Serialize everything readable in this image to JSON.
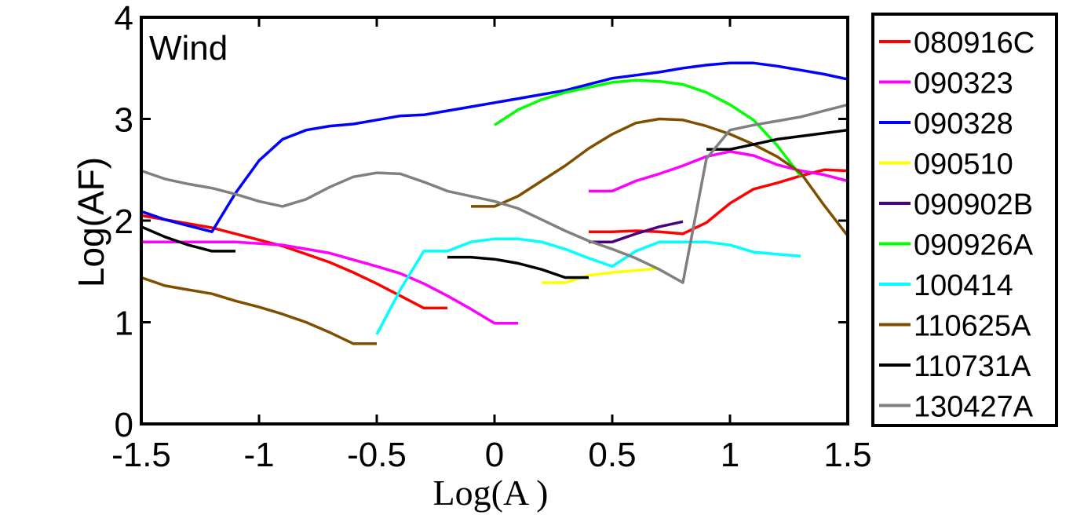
{
  "chart_data": {
    "type": "line",
    "panel_label": "Wind",
    "xlabel": "Log(A  )",
    "ylabel": "Log(AF)",
    "xlim": [
      -1.5,
      1.5
    ],
    "ylim": [
      0,
      4
    ],
    "xticks": [
      -1.5,
      -1,
      -0.5,
      0,
      0.5,
      1,
      1.5
    ],
    "xtick_labels": [
      "-1.5",
      "-1",
      "-0.5",
      "0",
      "0.5",
      "1",
      "1.5"
    ],
    "yticks": [
      0,
      1,
      2,
      3,
      4
    ],
    "ytick_labels": [
      "0",
      "1",
      "2",
      "3",
      "4"
    ],
    "grid": false,
    "legend_position": "outside-right",
    "series": [
      {
        "name": "080916C",
        "color": "#ff0000",
        "points": [
          [
            -1.5,
            2.05
          ],
          [
            -1.3,
            1.97
          ],
          [
            -1.2,
            1.93
          ],
          [
            -1.1,
            1.87
          ],
          [
            -1.0,
            1.81
          ],
          [
            -0.9,
            1.75
          ],
          [
            -0.8,
            1.67
          ],
          [
            -0.7,
            1.59
          ],
          [
            -0.6,
            1.49
          ],
          [
            -0.5,
            1.38
          ],
          [
            -0.4,
            1.26
          ],
          [
            -0.3,
            1.14
          ],
          [
            -0.2,
            1.14
          ]
        ]
      },
      {
        "name": "080916C",
        "color": "#ff0000",
        "points": [
          [
            0.4,
            1.89
          ],
          [
            0.5,
            1.89
          ],
          [
            0.6,
            1.9
          ],
          [
            0.7,
            1.89
          ],
          [
            0.8,
            1.87
          ],
          [
            0.9,
            1.98
          ],
          [
            1.0,
            2.17
          ],
          [
            1.1,
            2.31
          ],
          [
            1.2,
            2.37
          ],
          [
            1.3,
            2.44
          ],
          [
            1.4,
            2.5
          ],
          [
            1.5,
            2.49
          ]
        ]
      },
      {
        "name": "090323",
        "color": "#ff00ff",
        "points": [
          [
            -1.5,
            1.79
          ],
          [
            -1.3,
            1.79
          ],
          [
            -1.1,
            1.79
          ],
          [
            -0.9,
            1.76
          ],
          [
            -0.7,
            1.68
          ],
          [
            -0.5,
            1.55
          ],
          [
            -0.4,
            1.48
          ],
          [
            -0.3,
            1.38
          ],
          [
            -0.2,
            1.26
          ],
          [
            -0.1,
            1.13
          ],
          [
            0.0,
            0.99
          ],
          [
            0.1,
            0.99
          ]
        ]
      },
      {
        "name": "090323",
        "color": "#ff00ff",
        "points": [
          [
            0.4,
            2.29
          ],
          [
            0.5,
            2.29
          ],
          [
            0.6,
            2.39
          ],
          [
            0.7,
            2.46
          ],
          [
            0.8,
            2.54
          ],
          [
            0.9,
            2.63
          ],
          [
            1.0,
            2.68
          ],
          [
            1.1,
            2.64
          ],
          [
            1.2,
            2.55
          ],
          [
            1.3,
            2.49
          ],
          [
            1.4,
            2.45
          ],
          [
            1.5,
            2.39
          ]
        ]
      },
      {
        "name": "090328",
        "color": "#0000ff",
        "points": [
          [
            -1.5,
            2.09
          ],
          [
            -1.4,
            2.01
          ],
          [
            -1.3,
            1.95
          ],
          [
            -1.2,
            1.89
          ],
          [
            -1.1,
            2.27
          ],
          [
            -1.0,
            2.59
          ],
          [
            -0.9,
            2.8
          ],
          [
            -0.8,
            2.89
          ],
          [
            -0.7,
            2.93
          ],
          [
            -0.6,
            2.95
          ],
          [
            -0.5,
            2.99
          ],
          [
            -0.4,
            3.03
          ],
          [
            -0.3,
            3.04
          ],
          [
            -0.2,
            3.08
          ],
          [
            -0.1,
            3.12
          ],
          [
            0.0,
            3.16
          ],
          [
            0.1,
            3.2
          ],
          [
            0.2,
            3.24
          ],
          [
            0.3,
            3.28
          ],
          [
            0.4,
            3.34
          ],
          [
            0.5,
            3.4
          ],
          [
            0.6,
            3.43
          ],
          [
            0.7,
            3.46
          ],
          [
            0.8,
            3.5
          ],
          [
            0.9,
            3.53
          ],
          [
            1.0,
            3.55
          ],
          [
            1.1,
            3.55
          ],
          [
            1.2,
            3.52
          ],
          [
            1.3,
            3.48
          ],
          [
            1.4,
            3.44
          ],
          [
            1.5,
            3.39
          ]
        ]
      },
      {
        "name": "090510",
        "color": "#ffff00",
        "points": [
          [
            0.2,
            1.39
          ],
          [
            0.3,
            1.39
          ],
          [
            0.4,
            1.46
          ],
          [
            0.5,
            1.49
          ],
          [
            0.6,
            1.51
          ],
          [
            0.7,
            1.53
          ]
        ]
      },
      {
        "name": "090902B",
        "color": "#4b0082",
        "points": [
          [
            0.4,
            1.79
          ],
          [
            0.5,
            1.79
          ],
          [
            0.6,
            1.87
          ],
          [
            0.7,
            1.94
          ],
          [
            0.8,
            1.99
          ]
        ]
      },
      {
        "name": "090926A",
        "color": "#00ff00",
        "points": [
          [
            0.0,
            2.94
          ],
          [
            0.1,
            3.09
          ],
          [
            0.2,
            3.19
          ],
          [
            0.3,
            3.26
          ],
          [
            0.4,
            3.31
          ],
          [
            0.5,
            3.36
          ],
          [
            0.6,
            3.38
          ],
          [
            0.7,
            3.37
          ],
          [
            0.8,
            3.34
          ],
          [
            0.9,
            3.26
          ],
          [
            1.0,
            3.14
          ],
          [
            1.1,
            2.99
          ],
          [
            1.2,
            2.74
          ],
          [
            1.3,
            2.44
          ]
        ]
      },
      {
        "name": "100414",
        "color": "#00ffff",
        "points": [
          [
            -0.5,
            0.88
          ],
          [
            -0.4,
            1.32
          ],
          [
            -0.3,
            1.7
          ],
          [
            -0.2,
            1.7
          ],
          [
            -0.1,
            1.79
          ],
          [
            0.0,
            1.82
          ],
          [
            0.1,
            1.82
          ],
          [
            0.2,
            1.79
          ],
          [
            0.3,
            1.72
          ],
          [
            0.4,
            1.63
          ],
          [
            0.5,
            1.55
          ],
          [
            0.6,
            1.7
          ],
          [
            0.7,
            1.79
          ],
          [
            0.8,
            1.79
          ],
          [
            0.9,
            1.79
          ],
          [
            1.0,
            1.76
          ],
          [
            1.1,
            1.69
          ],
          [
            1.2,
            1.67
          ],
          [
            1.3,
            1.65
          ]
        ]
      },
      {
        "name": "110625A",
        "color": "#7f4f00",
        "points": [
          [
            -1.5,
            1.44
          ],
          [
            -1.4,
            1.36
          ],
          [
            -1.3,
            1.32
          ],
          [
            -1.2,
            1.28
          ],
          [
            -1.1,
            1.21
          ],
          [
            -1.0,
            1.15
          ],
          [
            -0.9,
            1.08
          ],
          [
            -0.8,
            1.0
          ],
          [
            -0.7,
            0.9
          ],
          [
            -0.6,
            0.79
          ],
          [
            -0.5,
            0.79
          ]
        ]
      },
      {
        "name": "110625A",
        "color": "#7f4f00",
        "points": [
          [
            -0.1,
            2.14
          ],
          [
            0.0,
            2.14
          ],
          [
            0.1,
            2.24
          ],
          [
            0.2,
            2.39
          ],
          [
            0.3,
            2.54
          ],
          [
            0.4,
            2.71
          ],
          [
            0.5,
            2.85
          ],
          [
            0.6,
            2.96
          ],
          [
            0.7,
            3.0
          ],
          [
            0.8,
            2.99
          ],
          [
            0.9,
            2.93
          ],
          [
            1.0,
            2.85
          ],
          [
            1.1,
            2.75
          ],
          [
            1.2,
            2.63
          ],
          [
            1.3,
            2.47
          ],
          [
            1.4,
            2.15
          ],
          [
            1.5,
            1.85
          ]
        ]
      },
      {
        "name": "110731A",
        "color": "#000000",
        "points": [
          [
            -1.5,
            1.94
          ],
          [
            -1.4,
            1.84
          ],
          [
            -1.3,
            1.76
          ],
          [
            -1.2,
            1.7
          ],
          [
            -1.1,
            1.7
          ]
        ]
      },
      {
        "name": "110731A",
        "color": "#000000",
        "points": [
          [
            -0.2,
            1.64
          ],
          [
            -0.1,
            1.64
          ],
          [
            0.0,
            1.62
          ],
          [
            0.1,
            1.58
          ],
          [
            0.2,
            1.52
          ],
          [
            0.3,
            1.44
          ],
          [
            0.4,
            1.44
          ]
        ]
      },
      {
        "name": "110731A",
        "color": "#000000",
        "points": [
          [
            0.9,
            2.7
          ],
          [
            1.0,
            2.7
          ],
          [
            1.1,
            2.75
          ],
          [
            1.2,
            2.8
          ],
          [
            1.3,
            2.83
          ],
          [
            1.4,
            2.86
          ],
          [
            1.5,
            2.89
          ]
        ]
      },
      {
        "name": "130427A",
        "color": "#808080",
        "points": [
          [
            -1.5,
            2.49
          ],
          [
            -1.4,
            2.41
          ],
          [
            -1.3,
            2.36
          ],
          [
            -1.2,
            2.32
          ],
          [
            -1.1,
            2.26
          ],
          [
            -1.0,
            2.19
          ],
          [
            -0.9,
            2.14
          ],
          [
            -0.8,
            2.21
          ],
          [
            -0.7,
            2.33
          ],
          [
            -0.6,
            2.43
          ],
          [
            -0.5,
            2.47
          ],
          [
            -0.4,
            2.46
          ],
          [
            -0.3,
            2.38
          ],
          [
            -0.2,
            2.29
          ],
          [
            -0.1,
            2.24
          ],
          [
            0.0,
            2.19
          ],
          [
            0.1,
            2.12
          ],
          [
            0.2,
            2.01
          ],
          [
            0.3,
            1.9
          ],
          [
            0.4,
            1.8
          ],
          [
            0.5,
            1.72
          ],
          [
            0.6,
            1.63
          ],
          [
            0.7,
            1.52
          ],
          [
            0.8,
            1.39
          ],
          [
            0.9,
            2.61
          ],
          [
            1.0,
            2.89
          ],
          [
            1.1,
            2.94
          ],
          [
            1.2,
            2.98
          ],
          [
            1.3,
            3.02
          ],
          [
            1.4,
            3.08
          ],
          [
            1.5,
            3.14
          ]
        ]
      }
    ],
    "legend": [
      {
        "label": "080916C",
        "color": "#ff0000"
      },
      {
        "label": "090323",
        "color": "#ff00ff"
      },
      {
        "label": "090328",
        "color": "#0000ff"
      },
      {
        "label": "090510",
        "color": "#ffff00"
      },
      {
        "label": "090902B",
        "color": "#4b0082"
      },
      {
        "label": "090926A",
        "color": "#00ff00"
      },
      {
        "label": "100414",
        "color": "#00ffff"
      },
      {
        "label": "110625A",
        "color": "#7f4f00"
      },
      {
        "label": "110731A",
        "color": "#000000"
      },
      {
        "label": "130427A",
        "color": "#808080"
      }
    ]
  }
}
